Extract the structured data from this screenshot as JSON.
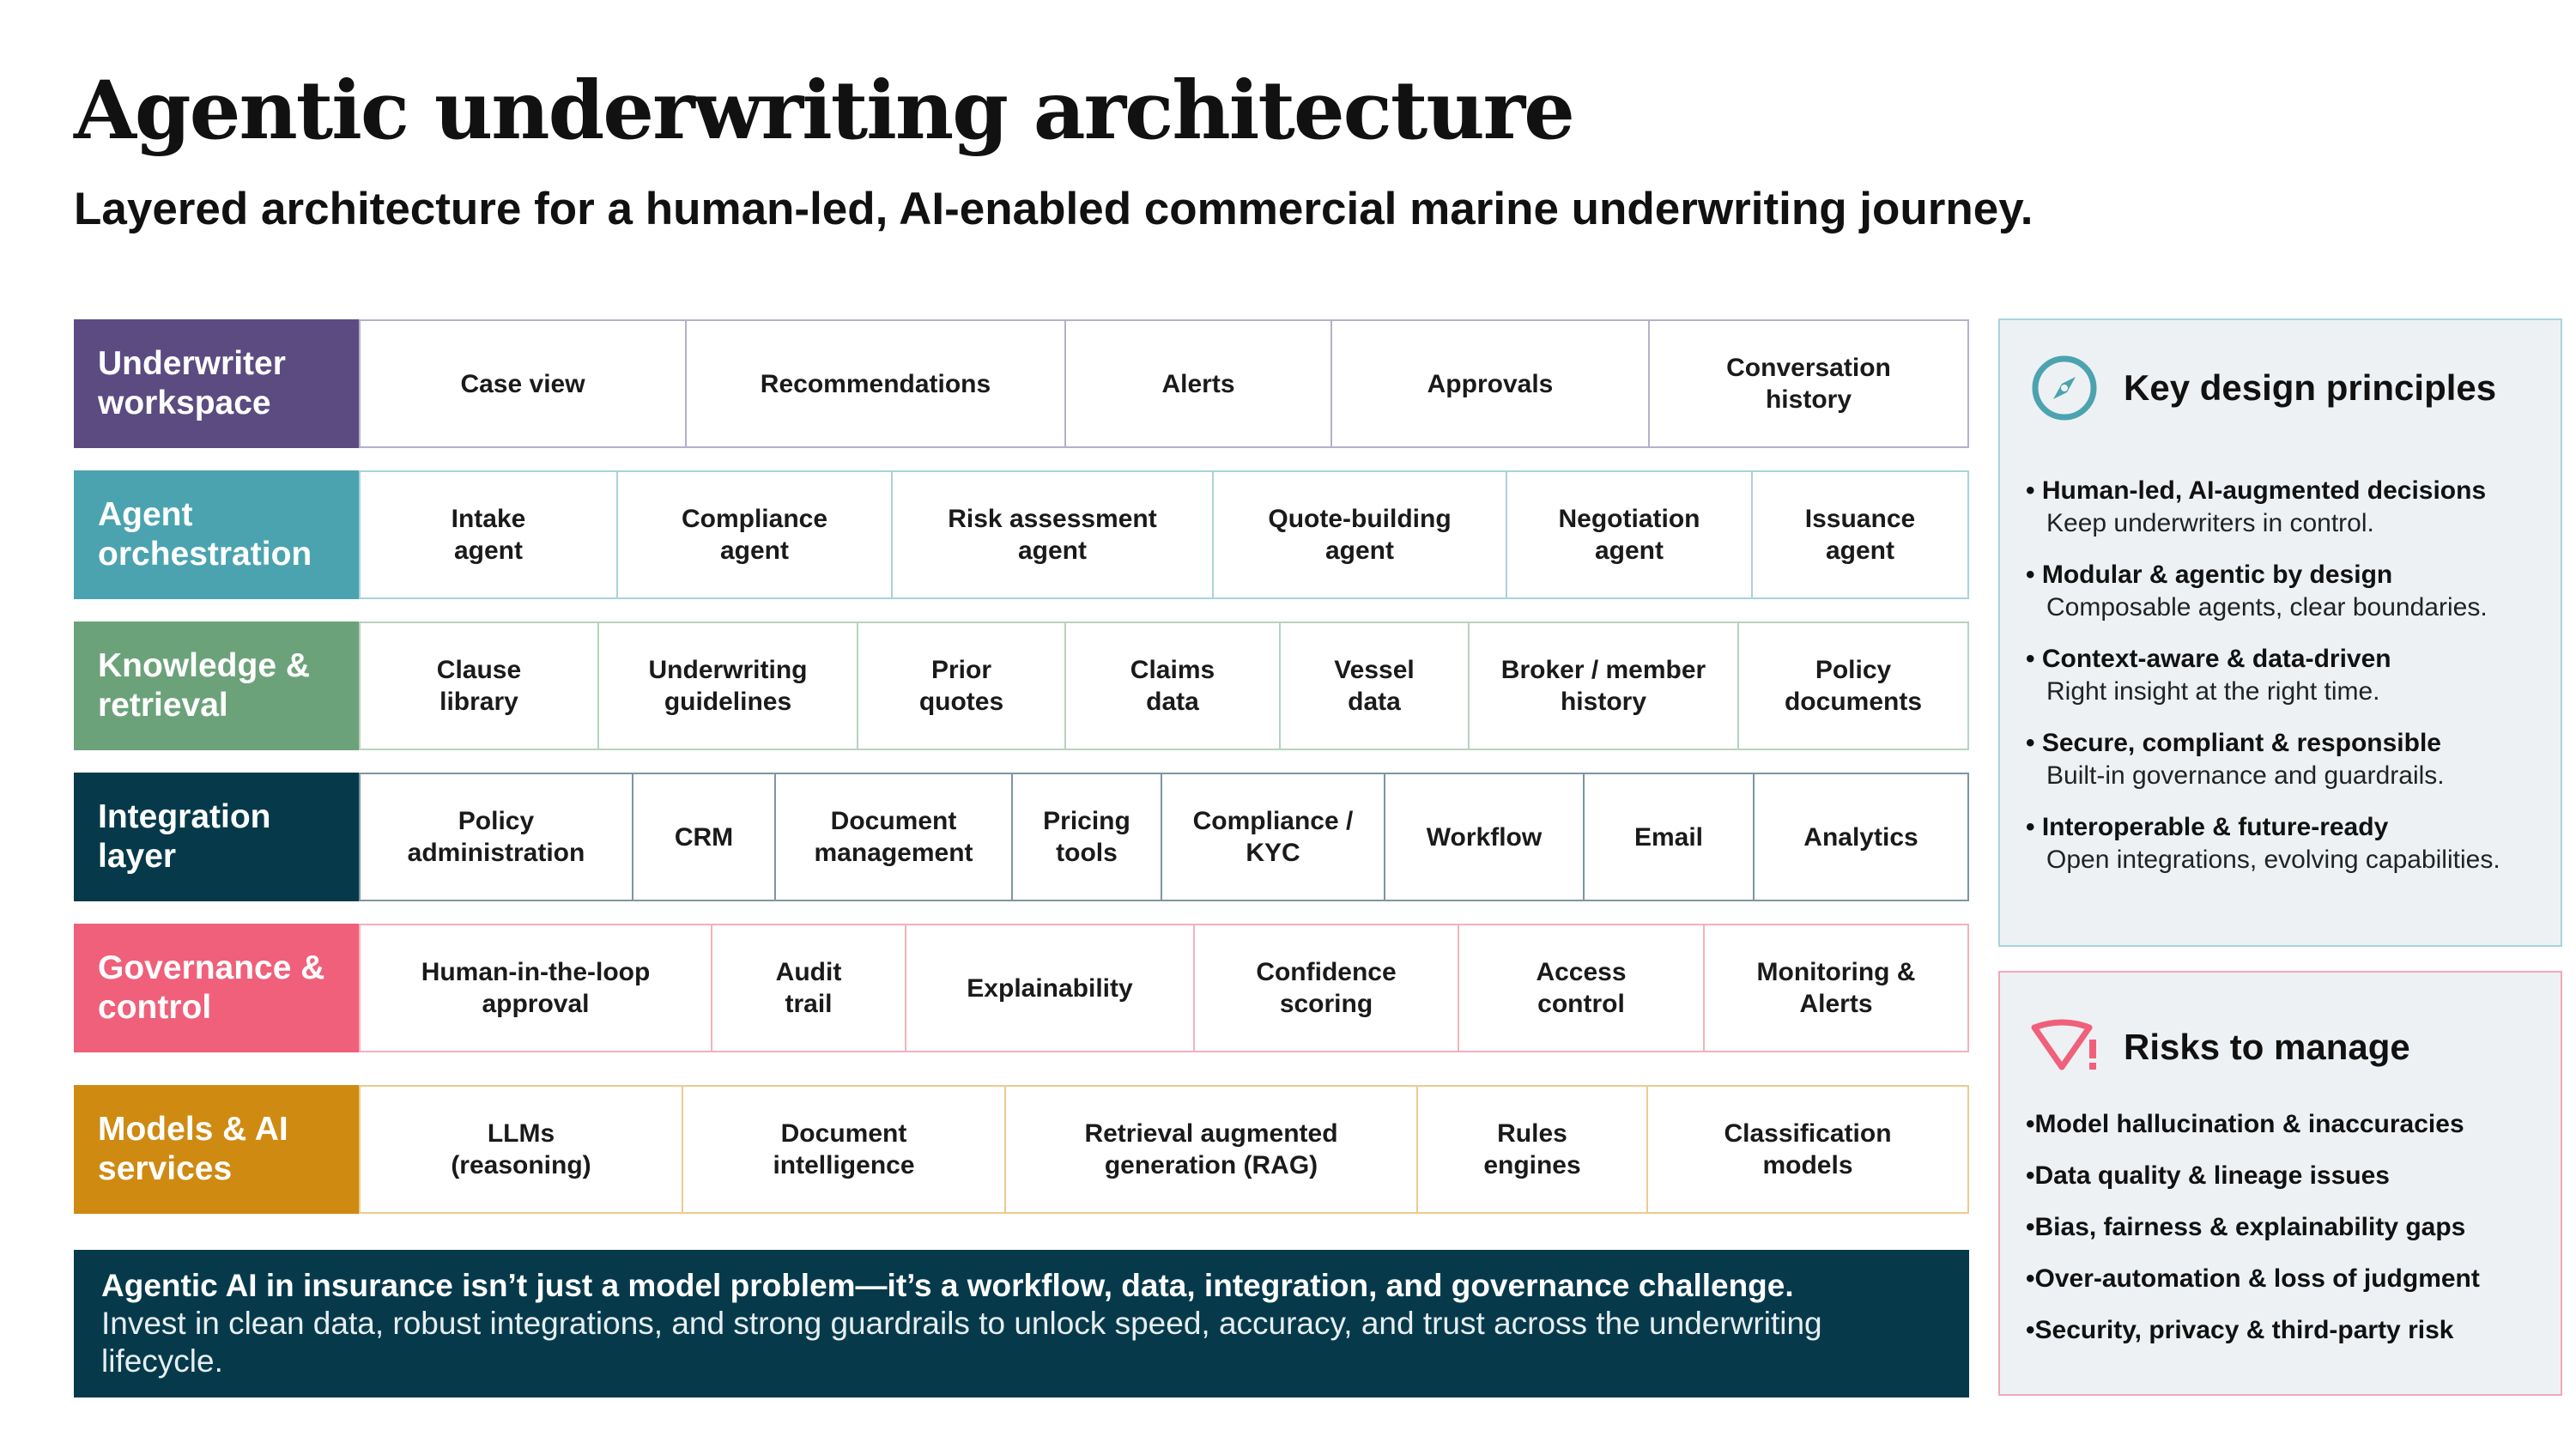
{
  "header": {
    "title": "Agentic underwriting architecture",
    "subtitle": "Layered architecture for a human-led, AI-enabled commercial marine underwriting journey."
  },
  "layers": [
    {
      "label": "Underwriter\nworkspace",
      "color": "#5b4b80",
      "border_color": "#b6afc9",
      "cells": [
        "Case view",
        "Recommendations",
        "Alerts",
        "Approvals",
        "Conversation\nhistory"
      ]
    },
    {
      "label": "Agent\norchestration",
      "color": "#4ba3b0",
      "border_color": "#a9d3da",
      "cells": [
        "Intake\nagent",
        "Compliance\nagent",
        "Risk assessment\nagent",
        "Quote-building\nagent",
        "Negotiation\nagent",
        "Issuance\nagent"
      ]
    },
    {
      "label": "Knowledge &\nretrieval",
      "color": "#6ca27a",
      "border_color": "#b7d2be",
      "cells": [
        "Clause\nlibrary",
        "Underwriting\nguidelines",
        "Prior\nquotes",
        "Claims\ndata",
        "Vessel\ndata",
        "Broker / member\nhistory",
        "Policy\ndocuments"
      ]
    },
    {
      "label": "Integration\nlayer",
      "color": "#063a4b",
      "border_color": "#7d96a0",
      "cells": [
        "Policy\nadministration",
        "CRM",
        "Document\nmanagement",
        "Pricing\ntools",
        "Compliance /\nKYC",
        "Workflow",
        "Email",
        "Analytics"
      ]
    },
    {
      "label": "Governance &\ncontrol",
      "color": "#f0607a",
      "border_color": "#f4b1bd",
      "cells": [
        "Human-in-the-loop\napproval",
        "Audit\ntrail",
        "Explainability",
        "Confidence\nscoring",
        "Access\ncontrol",
        "Monitoring &\nAlerts"
      ]
    },
    {
      "label": "Models & AI\nservices",
      "color": "#cf8a12",
      "border_color": "#ebcb8f",
      "cells": [
        "LLMs\n(reasoning)",
        "Document\nintelligence",
        "Retrieval augmented\ngeneration (RAG)",
        "Rules\nengines",
        "Classification\nmodels"
      ]
    }
  ],
  "banner": {
    "bold": "Agentic AI in insurance isn’t just a model problem—it’s a workflow, data, integration, and governance challenge.",
    "text": "Invest in clean data, robust integrations, and strong guardrails to unlock speed, accuracy, and trust across the underwriting lifecycle."
  },
  "principles": {
    "title": "Key design principles",
    "icon": "compass-icon",
    "accent": "#4ba3b0",
    "items": [
      {
        "title": "• Human-led, AI-augmented decisions",
        "desc": "Keep underwriters in control."
      },
      {
        "title": "• Modular & agentic by design",
        "desc": "Composable agents, clear boundaries."
      },
      {
        "title": "• Context-aware & data-driven",
        "desc": "Right insight at the right time."
      },
      {
        "title": "• Secure, compliant & responsible",
        "desc": "Built-in governance and guardrails."
      },
      {
        "title": "• Interoperable & future-ready",
        "desc": "Open integrations, evolving capabilities."
      }
    ]
  },
  "risks": {
    "title": "Risks to manage",
    "icon": "warning-shield-icon",
    "accent": "#f0607a",
    "items": [
      "•Model hallucination & inaccuracies",
      "•Data quality & lineage issues",
      "•Bias, fairness & explainability gaps",
      "•Over-automation & loss of judgment",
      "•Security, privacy & third-party risk"
    ]
  }
}
